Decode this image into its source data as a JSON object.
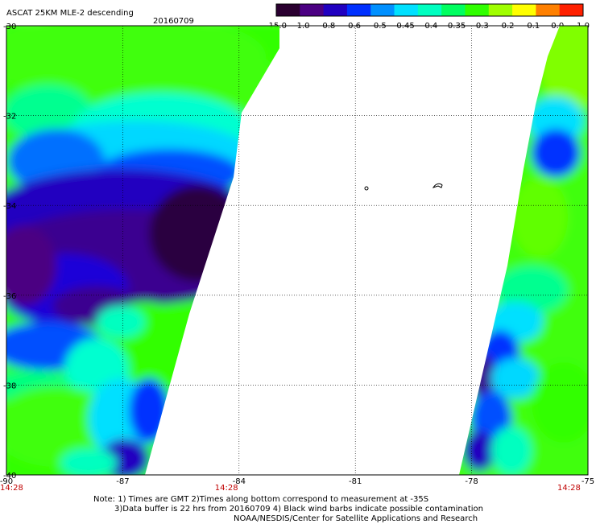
{
  "header": {
    "title": "ASCAT 25KM MLE-2 descending",
    "date": "20160709"
  },
  "colorbar": {
    "labels": [
      "-15.0",
      "-1.0",
      "-0.8",
      "-0.6",
      "-0.5",
      "-0.45",
      "-0.4",
      "-0.35",
      "-0.3",
      "-0.2",
      "-0.1",
      "0.0",
      "1.0"
    ],
    "colors": [
      "#2a0030",
      "#4b0082",
      "#2000c0",
      "#0030ff",
      "#0090ff",
      "#00e0ff",
      "#00ffc0",
      "#00ff60",
      "#30ff00",
      "#a0ff00",
      "#ffff00",
      "#ff8000",
      "#ff2000"
    ]
  },
  "map": {
    "lat_labels": [
      "-30",
      "-32",
      "-34",
      "-36",
      "-38",
      "-40"
    ],
    "lon_labels": [
      "-90",
      "-87",
      "-84",
      "-81",
      "-78",
      "-75"
    ],
    "time_labels": [
      "14:28",
      "14:28",
      "14:28"
    ],
    "lat_range": [
      -40,
      -30
    ],
    "lon_range": [
      -90,
      -75
    ]
  },
  "notes": {
    "line1": "Note: 1) Times are GMT 2)Times along bottom correspond to measurement at -35S",
    "line2": "3)Data buffer is 22 hrs from 20160709 4) Black wind barbs indicate possible contamination",
    "line3": "NOAA/NESDIS/Center for Satellite Applications and Research"
  }
}
